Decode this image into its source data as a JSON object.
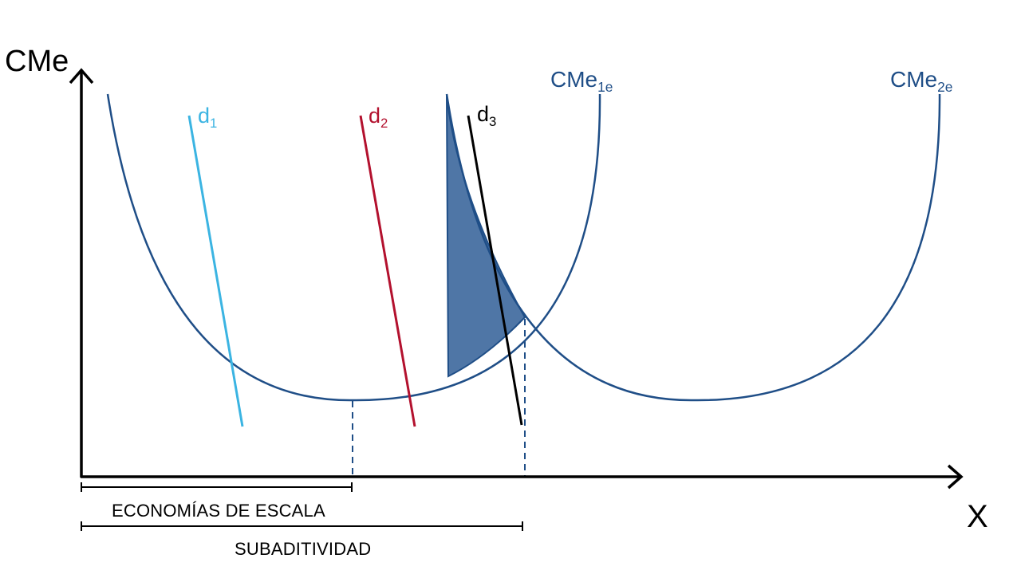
{
  "axes": {
    "y_label": "CMe",
    "x_label": "X"
  },
  "curves": [
    {
      "base": "CMe",
      "sub": "1e",
      "color": "#1f4e87"
    },
    {
      "base": "CMe",
      "sub": "2e",
      "color": "#1f4e87"
    }
  ],
  "demand_lines": [
    {
      "base": "d",
      "sub": "1",
      "color": "#3bb4e2"
    },
    {
      "base": "d",
      "sub": "2",
      "color": "#b3112e"
    },
    {
      "base": "d",
      "sub": "3",
      "color": "#000000"
    }
  ],
  "shaded_region_color": "#4f76a6",
  "ranges": {
    "economias": "ECONOMÍAS DE ESCALA",
    "subaditividad": "SUBADITIVIDAD"
  }
}
